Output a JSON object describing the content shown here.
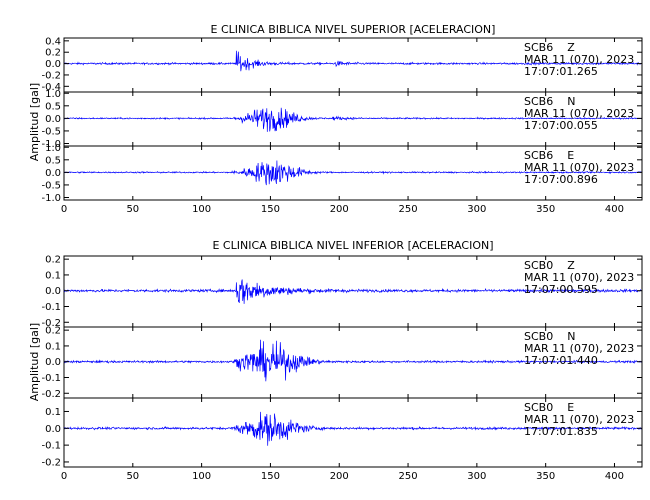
{
  "chart_data": [
    {
      "type": "line",
      "title": "E CLINICA BIBLICA NIVEL SUPERIOR [ACELERACION]",
      "ylabel": "Amplitud [gal]",
      "xlim": [
        0,
        420
      ],
      "x_ticks": [
        "0",
        "50",
        "100",
        "150",
        "200",
        "250",
        "300",
        "350",
        "400"
      ],
      "color": "#0000ff",
      "panels": [
        {
          "station": "SCB6",
          "component": "Z",
          "date": "MAR 11 (070), 2023",
          "time": "17:07:01.265",
          "ylim": [
            -0.5,
            0.45
          ],
          "y_ticks": [
            "0.4",
            "0.2",
            "0.0",
            "-0.2",
            "-0.4"
          ],
          "y_tick_values": [
            0.4,
            0.2,
            0.0,
            -0.2,
            -0.4
          ],
          "noise": 0.03,
          "bursts": [
            {
              "start": 125,
              "peak": 0.42,
              "decay": 9,
              "dur": 60
            },
            {
              "start": 197,
              "peak": 0.07,
              "decay": 8,
              "dur": 25
            }
          ]
        },
        {
          "station": "SCB6",
          "component": "N",
          "date": "MAR 11 (070), 2023",
          "time": "17:07:00.055",
          "ylim": [
            -1.1,
            1.05
          ],
          "y_ticks": [
            "1.0",
            "0.5",
            "0.0",
            "-0.5",
            "-1.0"
          ],
          "y_tick_values": [
            1.0,
            0.5,
            0.0,
            -0.5,
            -1.0
          ],
          "noise": 0.05,
          "bursts": [
            {
              "start": 122,
              "peak": 0.9,
              "center": 150,
              "width": 18,
              "dur": 70
            },
            {
              "start": 195,
              "peak": 0.12,
              "decay": 10,
              "dur": 25
            }
          ]
        },
        {
          "station": "SCB6",
          "component": "E",
          "date": "MAR 11 (070), 2023",
          "time": "17:07:00.896",
          "ylim": [
            -1.1,
            1.05
          ],
          "y_ticks": [
            "1.0",
            "0.5",
            "0.0",
            "-0.5",
            "-1.0"
          ],
          "y_tick_values": [
            1.0,
            0.5,
            0.0,
            -0.5,
            -1.0
          ],
          "noise": 0.05,
          "bursts": [
            {
              "start": 120,
              "peak": 0.95,
              "center": 152,
              "width": 18,
              "dur": 75
            }
          ]
        }
      ]
    },
    {
      "type": "line",
      "title": "E CLINICA BIBLICA NIVEL INFERIOR [ACELERACION]",
      "ylabel": "Amplitud [gal]",
      "xlim": [
        0,
        420
      ],
      "x_ticks": [
        "0",
        "50",
        "100",
        "150",
        "200",
        "250",
        "300",
        "350",
        "400"
      ],
      "color": "#0000ff",
      "panels": [
        {
          "station": "SCB0",
          "component": "Z",
          "date": "MAR 11 (070), 2023",
          "time": "17:07:00.595",
          "ylim": [
            -0.23,
            0.22
          ],
          "y_ticks": [
            "0.2",
            "0.1",
            "0.0",
            "-0.1",
            "-0.2"
          ],
          "y_tick_values": [
            0.2,
            0.1,
            0.0,
            -0.1,
            -0.2
          ],
          "noise": 0.015,
          "bursts": [
            {
              "start": 125,
              "peak": 0.2,
              "decay": 20,
              "dur": 110
            }
          ]
        },
        {
          "station": "SCB0",
          "component": "N",
          "date": "MAR 11 (070), 2023",
          "time": "17:07:01.440",
          "ylim": [
            -0.23,
            0.22
          ],
          "y_ticks": [
            "0.2",
            "0.1",
            "0.0",
            "-0.1",
            "-0.2"
          ],
          "y_tick_values": [
            0.2,
            0.1,
            0.0,
            -0.1,
            -0.2
          ],
          "noise": 0.012,
          "bursts": [
            {
              "start": 123,
              "peak": 0.2,
              "center": 150,
              "width": 22,
              "dur": 90
            }
          ]
        },
        {
          "station": "SCB0",
          "component": "E",
          "date": "MAR 11 (070), 2023",
          "time": "17:07:01.835",
          "ylim": [
            -0.23,
            0.18
          ],
          "y_ticks": [
            "0.1",
            "0.0",
            "-0.1",
            "-0.2"
          ],
          "y_tick_values": [
            0.1,
            0.0,
            -0.1,
            -0.2
          ],
          "noise": 0.012,
          "bursts": [
            {
              "start": 122,
              "peak": 0.16,
              "center": 150,
              "width": 20,
              "dur": 80
            }
          ]
        }
      ]
    }
  ]
}
